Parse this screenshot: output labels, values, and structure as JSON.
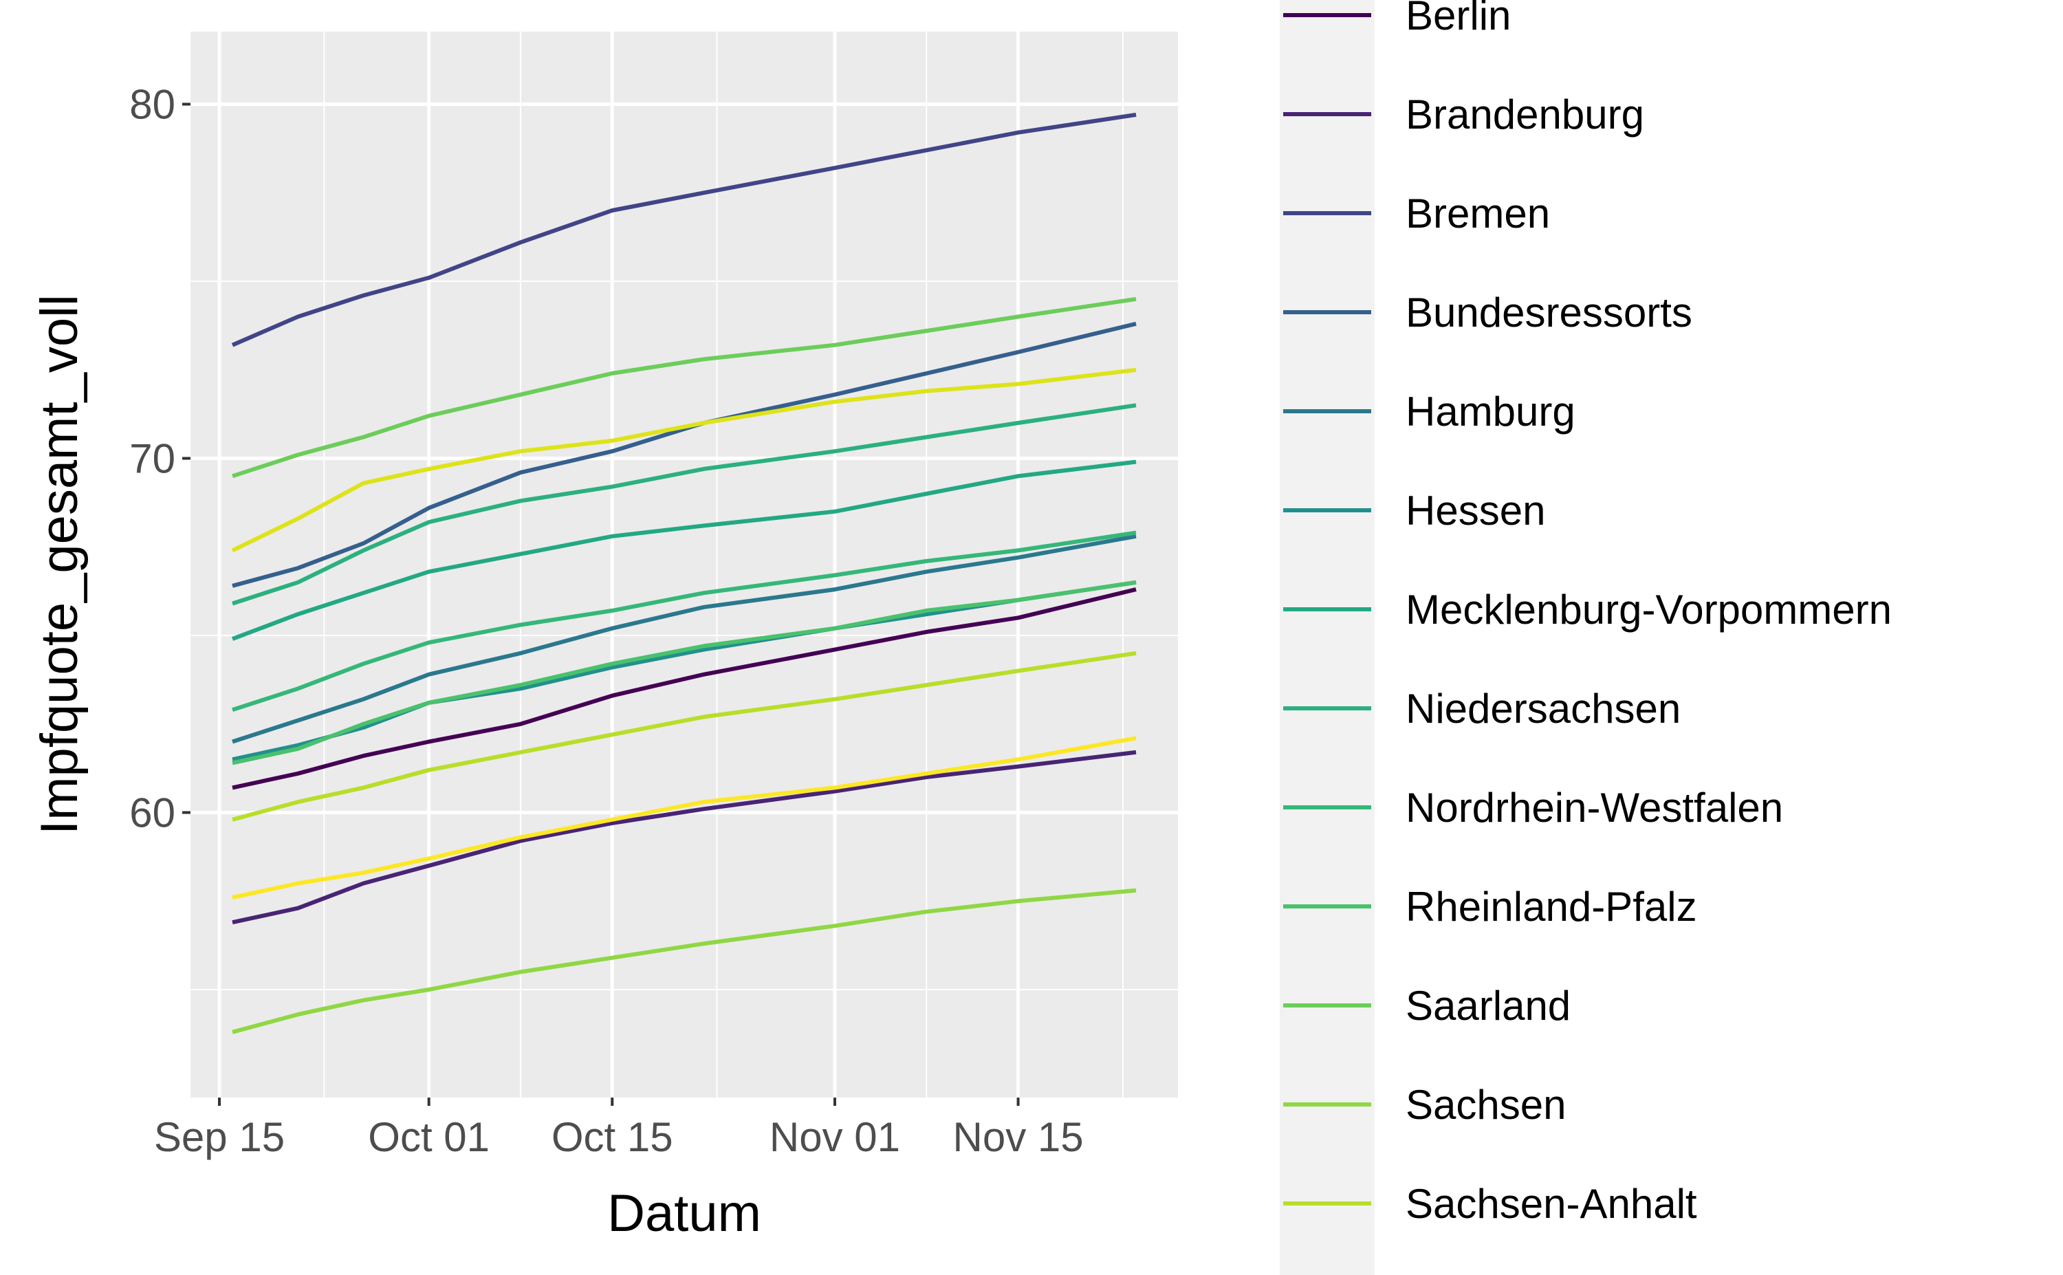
{
  "chart_data": {
    "type": "line",
    "xlabel": "Datum",
    "ylabel": "Impfquote_gesamt_voll",
    "x_ticks": [
      "Sep 15",
      "Oct 01",
      "Oct 15",
      "Nov 01",
      "Nov 15"
    ],
    "y_ticks": [
      60,
      70,
      80
    ],
    "ylim": [
      53.0,
      81.0
    ],
    "xlim": [
      "2021-09-15",
      "2021-11-25"
    ],
    "grid": true,
    "legend_position": "right",
    "series": [
      {
        "name": "Berlin",
        "color": "#440154",
        "points": [
          [
            "2021-09-16",
            60.7
          ],
          [
            "2021-09-21",
            61.1
          ],
          [
            "2021-09-26",
            61.6
          ],
          [
            "2021-10-01",
            62.0
          ],
          [
            "2021-10-08",
            62.5
          ],
          [
            "2021-10-15",
            63.3
          ],
          [
            "2021-10-22",
            63.9
          ],
          [
            "2021-11-01",
            64.6
          ],
          [
            "2021-11-08",
            65.1
          ],
          [
            "2021-11-15",
            65.5
          ],
          [
            "2021-11-24",
            66.3
          ]
        ]
      },
      {
        "name": "Brandenburg",
        "color": "#482475",
        "points": [
          [
            "2021-09-16",
            56.9
          ],
          [
            "2021-09-21",
            57.3
          ],
          [
            "2021-09-26",
            58.0
          ],
          [
            "2021-10-01",
            58.5
          ],
          [
            "2021-10-08",
            59.2
          ],
          [
            "2021-10-15",
            59.7
          ],
          [
            "2021-10-22",
            60.1
          ],
          [
            "2021-11-01",
            60.6
          ],
          [
            "2021-11-08",
            61.0
          ],
          [
            "2021-11-15",
            61.3
          ],
          [
            "2021-11-24",
            61.7
          ]
        ]
      },
      {
        "name": "Bremen",
        "color": "#414487",
        "points": [
          [
            "2021-09-16",
            73.2
          ],
          [
            "2021-09-21",
            74.0
          ],
          [
            "2021-09-26",
            74.6
          ],
          [
            "2021-10-01",
            75.1
          ],
          [
            "2021-10-08",
            76.1
          ],
          [
            "2021-10-15",
            77.0
          ],
          [
            "2021-10-22",
            77.5
          ],
          [
            "2021-11-01",
            78.2
          ],
          [
            "2021-11-08",
            78.7
          ],
          [
            "2021-11-15",
            79.2
          ],
          [
            "2021-11-24",
            79.7
          ]
        ]
      },
      {
        "name": "Bundesressorts",
        "color": "#355f8d",
        "points": [
          [
            "2021-09-16",
            66.4
          ],
          [
            "2021-09-21",
            66.9
          ],
          [
            "2021-09-26",
            67.6
          ],
          [
            "2021-10-01",
            68.6
          ],
          [
            "2021-10-08",
            69.6
          ],
          [
            "2021-10-15",
            70.2
          ],
          [
            "2021-10-22",
            71.0
          ],
          [
            "2021-11-01",
            71.8
          ],
          [
            "2021-11-08",
            72.4
          ],
          [
            "2021-11-15",
            73.0
          ],
          [
            "2021-11-24",
            73.8
          ]
        ]
      },
      {
        "name": "Hamburg",
        "color": "#2a788e",
        "points": [
          [
            "2021-09-16",
            62.0
          ],
          [
            "2021-09-21",
            62.6
          ],
          [
            "2021-09-26",
            63.2
          ],
          [
            "2021-10-01",
            63.9
          ],
          [
            "2021-10-08",
            64.5
          ],
          [
            "2021-10-15",
            65.2
          ],
          [
            "2021-10-22",
            65.8
          ],
          [
            "2021-11-01",
            66.3
          ],
          [
            "2021-11-08",
            66.8
          ],
          [
            "2021-11-15",
            67.2
          ],
          [
            "2021-11-24",
            67.8
          ]
        ]
      },
      {
        "name": "Hessen",
        "color": "#21908d",
        "points": [
          [
            "2021-09-16",
            61.5
          ],
          [
            "2021-09-21",
            61.9
          ],
          [
            "2021-09-26",
            62.4
          ],
          [
            "2021-10-01",
            63.1
          ],
          [
            "2021-10-08",
            63.5
          ],
          [
            "2021-10-15",
            64.1
          ],
          [
            "2021-10-22",
            64.6
          ],
          [
            "2021-11-01",
            65.2
          ],
          [
            "2021-11-08",
            65.6
          ],
          [
            "2021-11-15",
            66.0
          ],
          [
            "2021-11-24",
            66.5
          ]
        ]
      },
      {
        "name": "Mecklenburg-Vorpommern",
        "color": "#22a884",
        "points": [
          [
            "2021-09-16",
            64.9
          ],
          [
            "2021-09-21",
            65.6
          ],
          [
            "2021-09-26",
            66.2
          ],
          [
            "2021-10-01",
            66.8
          ],
          [
            "2021-10-08",
            67.3
          ],
          [
            "2021-10-15",
            67.8
          ],
          [
            "2021-10-22",
            68.1
          ],
          [
            "2021-11-01",
            68.5
          ],
          [
            "2021-11-08",
            69.0
          ],
          [
            "2021-11-15",
            69.5
          ],
          [
            "2021-11-24",
            69.9
          ]
        ]
      },
      {
        "name": "Niedersachsen",
        "color": "#2bb07f",
        "points": [
          [
            "2021-09-16",
            65.9
          ],
          [
            "2021-09-21",
            66.5
          ],
          [
            "2021-09-26",
            67.4
          ],
          [
            "2021-10-01",
            68.2
          ],
          [
            "2021-10-08",
            68.8
          ],
          [
            "2021-10-15",
            69.2
          ],
          [
            "2021-10-22",
            69.7
          ],
          [
            "2021-11-01",
            70.2
          ],
          [
            "2021-11-08",
            70.6
          ],
          [
            "2021-11-15",
            71.0
          ],
          [
            "2021-11-24",
            71.5
          ]
        ]
      },
      {
        "name": "Nordrhein-Westfalen",
        "color": "#35b779",
        "points": [
          [
            "2021-09-16",
            62.9
          ],
          [
            "2021-09-21",
            63.5
          ],
          [
            "2021-09-26",
            64.2
          ],
          [
            "2021-10-01",
            64.8
          ],
          [
            "2021-10-08",
            65.3
          ],
          [
            "2021-10-15",
            65.7
          ],
          [
            "2021-10-22",
            66.2
          ],
          [
            "2021-11-01",
            66.7
          ],
          [
            "2021-11-08",
            67.1
          ],
          [
            "2021-11-15",
            67.4
          ],
          [
            "2021-11-24",
            67.9
          ]
        ]
      },
      {
        "name": "Rheinland-Pfalz",
        "color": "#4ac16d",
        "points": [
          [
            "2021-09-16",
            61.4
          ],
          [
            "2021-09-21",
            61.8
          ],
          [
            "2021-09-26",
            62.5
          ],
          [
            "2021-10-01",
            63.1
          ],
          [
            "2021-10-08",
            63.6
          ],
          [
            "2021-10-15",
            64.2
          ],
          [
            "2021-10-22",
            64.7
          ],
          [
            "2021-11-01",
            65.2
          ],
          [
            "2021-11-08",
            65.7
          ],
          [
            "2021-11-15",
            66.0
          ],
          [
            "2021-11-24",
            66.5
          ]
        ]
      },
      {
        "name": "Saarland",
        "color": "#6ccd5a",
        "points": [
          [
            "2021-09-16",
            69.5
          ],
          [
            "2021-09-21",
            70.1
          ],
          [
            "2021-09-26",
            70.6
          ],
          [
            "2021-10-01",
            71.2
          ],
          [
            "2021-10-08",
            71.8
          ],
          [
            "2021-10-15",
            72.4
          ],
          [
            "2021-10-22",
            72.8
          ],
          [
            "2021-11-01",
            73.2
          ],
          [
            "2021-11-08",
            73.6
          ],
          [
            "2021-11-15",
            74.0
          ],
          [
            "2021-11-24",
            74.5
          ]
        ]
      },
      {
        "name": "Sachsen",
        "color": "#8fd744",
        "points": [
          [
            "2021-09-16",
            53.8
          ],
          [
            "2021-09-21",
            54.3
          ],
          [
            "2021-09-26",
            54.7
          ],
          [
            "2021-10-01",
            55.0
          ],
          [
            "2021-10-08",
            55.5
          ],
          [
            "2021-10-15",
            55.9
          ],
          [
            "2021-10-22",
            56.3
          ],
          [
            "2021-11-01",
            56.8
          ],
          [
            "2021-11-08",
            57.2
          ],
          [
            "2021-11-15",
            57.5
          ],
          [
            "2021-11-24",
            57.8
          ]
        ]
      },
      {
        "name": "Sachsen-Anhalt",
        "color": "#b8de29",
        "points": [
          [
            "2021-09-16",
            59.8
          ],
          [
            "2021-09-21",
            60.3
          ],
          [
            "2021-09-26",
            60.7
          ],
          [
            "2021-10-01",
            61.2
          ],
          [
            "2021-10-08",
            61.7
          ],
          [
            "2021-10-15",
            62.2
          ],
          [
            "2021-10-22",
            62.7
          ],
          [
            "2021-11-01",
            63.2
          ],
          [
            "2021-11-08",
            63.6
          ],
          [
            "2021-11-15",
            64.0
          ],
          [
            "2021-11-24",
            64.5
          ]
        ]
      },
      {
        "name": "",
        "color": "#dde318",
        "points": [
          [
            "2021-09-16",
            67.4
          ],
          [
            "2021-09-21",
            68.3
          ],
          [
            "2021-09-26",
            69.3
          ],
          [
            "2021-10-01",
            69.7
          ],
          [
            "2021-10-08",
            70.2
          ],
          [
            "2021-10-15",
            70.5
          ],
          [
            "2021-10-22",
            71.0
          ],
          [
            "2021-11-01",
            71.6
          ],
          [
            "2021-11-08",
            71.9
          ],
          [
            "2021-11-15",
            72.1
          ],
          [
            "2021-11-24",
            72.5
          ]
        ]
      },
      {
        "name": "",
        "color": "#fde725",
        "points": [
          [
            "2021-09-16",
            57.6
          ],
          [
            "2021-09-21",
            58.0
          ],
          [
            "2021-09-26",
            58.3
          ],
          [
            "2021-10-01",
            58.7
          ],
          [
            "2021-10-08",
            59.3
          ],
          [
            "2021-10-15",
            59.8
          ],
          [
            "2021-10-22",
            60.3
          ],
          [
            "2021-11-01",
            60.7
          ],
          [
            "2021-11-08",
            61.1
          ],
          [
            "2021-11-15",
            61.5
          ],
          [
            "2021-11-24",
            62.1
          ]
        ]
      }
    ]
  }
}
